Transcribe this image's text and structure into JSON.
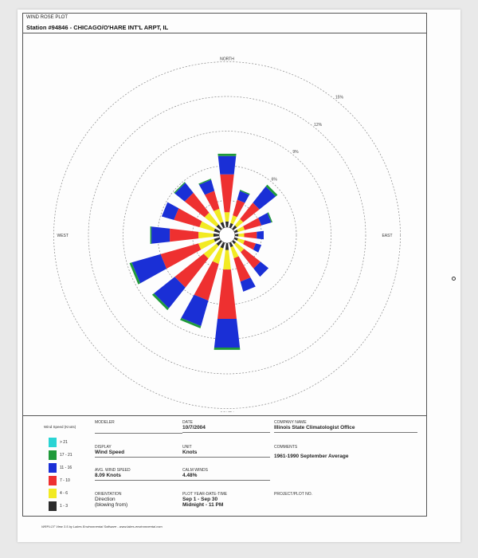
{
  "header": {
    "plot_type": "WIND ROSE PLOT",
    "station": "Station #94846 - CHICAGO/O'HARE INT'L ARPT, IL"
  },
  "compass": {
    "north": "NORTH",
    "south": "SOUTH",
    "east": "EAST",
    "west": "WEST"
  },
  "chart_data": {
    "type": "wind-rose",
    "rings": [
      {
        "value": 3,
        "label": ""
      },
      {
        "value": 6,
        "label": "6%"
      },
      {
        "value": 9,
        "label": "9%"
      },
      {
        "value": 12,
        "label": "12%"
      },
      {
        "value": 15,
        "label": "15%"
      }
    ],
    "speed_bins": [
      "1 - 3",
      "4 - 6",
      "7 - 10",
      "11 - 16",
      "17 - 21",
      "> 21"
    ],
    "colors": [
      "#2b2b2b",
      "#f2ea22",
      "#ee3030",
      "#1a2fd6",
      "#1f9a3a",
      "#2ad4d4"
    ],
    "directions": [
      "N",
      "NNE",
      "NE",
      "ENE",
      "E",
      "ESE",
      "SE",
      "SSE",
      "S",
      "SSW",
      "SW",
      "WSW",
      "W",
      "WNW",
      "NW",
      "NNW"
    ],
    "frequencies": [
      [
        0.5,
        0.8,
        3.3,
        1.6,
        0.2,
        0
      ],
      [
        0.4,
        0.7,
        1.4,
        0.8,
        0.1,
        0
      ],
      [
        0.4,
        0.7,
        1.8,
        1.8,
        0.2,
        0
      ],
      [
        0.3,
        0.6,
        1.5,
        0.9,
        0.1,
        0
      ],
      [
        0.3,
        0.5,
        1.1,
        0.6,
        0,
        0
      ],
      [
        0.3,
        0.6,
        1.0,
        0.5,
        0,
        0
      ],
      [
        0.3,
        0.9,
        1.8,
        0.9,
        0,
        0
      ],
      [
        0.4,
        1.0,
        2.1,
        0.9,
        0,
        0
      ],
      [
        0.6,
        1.7,
        4.3,
        2.5,
        0.2,
        0
      ],
      [
        0.5,
        1.4,
        3.3,
        2.3,
        0.2,
        0
      ],
      [
        0.5,
        1.4,
        3.2,
        2.3,
        0.2,
        0
      ],
      [
        0.5,
        1.4,
        3.4,
        2.6,
        0.2,
        0
      ],
      [
        0.5,
        1.3,
        2.5,
        1.6,
        0.1,
        0
      ],
      [
        0.5,
        1.3,
        2.3,
        1.1,
        0,
        0
      ],
      [
        0.5,
        1.3,
        2.2,
        1.1,
        0.1,
        0
      ],
      [
        0.5,
        1.2,
        1.6,
        1.0,
        0.1,
        0
      ]
    ],
    "calm_label": "4.48%"
  },
  "legend": {
    "title": "Wind Speed (Knots)",
    "bins": [
      {
        "label": "> 21",
        "color": "#2ad4d4"
      },
      {
        "label": "17 - 21",
        "color": "#1f9a3a"
      },
      {
        "label": "11 - 16",
        "color": "#1a2fd6"
      },
      {
        "label": "7 - 10",
        "color": "#ee3030"
      },
      {
        "label": "4 - 6",
        "color": "#f2ea22"
      },
      {
        "label": "1 - 3",
        "color": "#2b2b2b"
      }
    ]
  },
  "info": {
    "modeler_label": "MODELER",
    "modeler_value": "",
    "display_label": "DISPLAY",
    "display_value": "Wind Speed",
    "avg_label": "AVG. WIND SPEED",
    "avg_value": "8.09 Knots",
    "orientation_label": "ORIENTATION",
    "orientation_value": "Direction",
    "orientation_value2": "(blowing from)",
    "date_label": "DATE",
    "date_value": "10/7/2004",
    "unit_label": "UNIT",
    "unit_value": "Knots",
    "calm_label": "CALM WINDS",
    "calm_value": "4.48%",
    "plot_range_label": "PLOT YEAR-DATE-TIME",
    "plot_range_value1": "Sep 1 - Sep 30",
    "plot_range_value2": "Midnight - 11 PM",
    "company_label": "COMPANY NAME",
    "company_value": "Illinois State Climatologist Office",
    "comments_label": "COMMENTS",
    "comments_value": "1961-1990 September Average",
    "project_label": "PROJECT/PLOT NO."
  },
  "footer": "WRPLOT View 3.5 by Lakes Environmental Software - www.lakes-environmental.com"
}
